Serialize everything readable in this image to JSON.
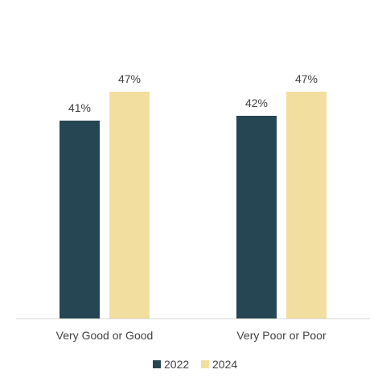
{
  "chart_data": {
    "type": "bar",
    "categories": [
      "Very Good or Good",
      "Very Poor or Poor"
    ],
    "series": [
      {
        "name": "2022",
        "values": [
          41,
          42
        ],
        "color": "#264653"
      },
      {
        "name": "2024",
        "values": [
          47,
          47
        ],
        "color": "#F2DF9F"
      }
    ],
    "value_suffix": "%",
    "ylim": [
      0,
      60
    ],
    "grid": false,
    "legend_position": "bottom",
    "axis_color": "#D9D9D9"
  }
}
